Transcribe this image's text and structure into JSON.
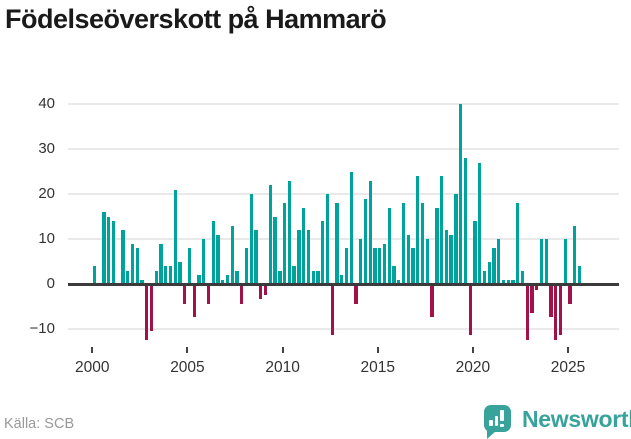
{
  "header": {
    "title": "Födelseöverskott på Hammarö"
  },
  "footer": {
    "source": "Källa: SCB",
    "logo_text": "Newsworthy"
  },
  "colors": {
    "positive_bar": "#00a39b",
    "negative_bar": "#a01248",
    "zero_line": "#3b3b3b",
    "gridline": "#e9e9e9",
    "axis_text": "#333333",
    "title_text": "#1a1a1a",
    "source_text": "#999999",
    "logo_teal": "#38a39a"
  },
  "chart_data": {
    "type": "bar",
    "title": "Födelseöverskott på Hammarö",
    "frequency": "quarterly",
    "start_period": "2000-Q1",
    "end_period": "2025-Q3",
    "grid": "horizontal",
    "legend": "none",
    "xlabel": "",
    "ylabel": "",
    "ylim": [
      -14,
      42
    ],
    "y_ticks": [
      -10,
      0,
      10,
      20,
      30,
      40
    ],
    "x_ticks": [
      "2000",
      "2005",
      "2010",
      "2015",
      "2020",
      "2025"
    ],
    "series": [
      {
        "year": 2000,
        "quarters": [
          4,
          0,
          16,
          15
        ]
      },
      {
        "year": 2001,
        "quarters": [
          14,
          0,
          12,
          3
        ]
      },
      {
        "year": 2002,
        "quarters": [
          9,
          8,
          1,
          -12
        ]
      },
      {
        "year": 2003,
        "quarters": [
          -10,
          3,
          9,
          4
        ]
      },
      {
        "year": 2004,
        "quarters": [
          4,
          21,
          5,
          -4
        ]
      },
      {
        "year": 2005,
        "quarters": [
          8,
          -7,
          2,
          10
        ]
      },
      {
        "year": 2006,
        "quarters": [
          -4,
          14,
          11,
          1
        ]
      },
      {
        "year": 2007,
        "quarters": [
          2,
          13,
          3,
          -4
        ]
      },
      {
        "year": 2008,
        "quarters": [
          8,
          20,
          12,
          -3
        ]
      },
      {
        "year": 2009,
        "quarters": [
          -2,
          22,
          15,
          3
        ]
      },
      {
        "year": 2010,
        "quarters": [
          18,
          23,
          4,
          12
        ]
      },
      {
        "year": 2011,
        "quarters": [
          17,
          12,
          3,
          3
        ]
      },
      {
        "year": 2012,
        "quarters": [
          14,
          20,
          -11,
          18
        ]
      },
      {
        "year": 2013,
        "quarters": [
          2,
          8,
          25,
          -4
        ]
      },
      {
        "year": 2014,
        "quarters": [
          10,
          19,
          23,
          8
        ]
      },
      {
        "year": 2015,
        "quarters": [
          8,
          9,
          17,
          4
        ]
      },
      {
        "year": 2016,
        "quarters": [
          1,
          18,
          11,
          8
        ]
      },
      {
        "year": 2017,
        "quarters": [
          24,
          18,
          10,
          -7
        ]
      },
      {
        "year": 2018,
        "quarters": [
          17,
          24,
          12,
          11
        ]
      },
      {
        "year": 2019,
        "quarters": [
          20,
          40,
          28,
          -11
        ]
      },
      {
        "year": 2020,
        "quarters": [
          14,
          27,
          3,
          5
        ]
      },
      {
        "year": 2021,
        "quarters": [
          8,
          10,
          1,
          1
        ]
      },
      {
        "year": 2022,
        "quarters": [
          1,
          18,
          3,
          -12
        ]
      },
      {
        "year": 2023,
        "quarters": [
          -6,
          -1,
          10,
          10
        ]
      },
      {
        "year": 2024,
        "quarters": [
          -7,
          -12,
          -11,
          10
        ]
      },
      {
        "year": 2025,
        "quarters": [
          -4,
          13,
          4
        ]
      }
    ]
  }
}
